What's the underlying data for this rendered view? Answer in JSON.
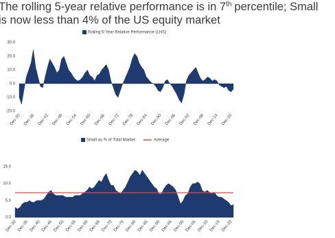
{
  "title": {
    "line1_start": "The rolling 5-year relative performance is in 7",
    "line1_sup": "th",
    "line1_end": "percentile; Small",
    "line2": "is now less than 4% of the US equity market"
  },
  "chart_data": [
    {
      "type": "area",
      "categories": [
        "Dec-30",
        null,
        null,
        null,
        null,
        null,
        "Dec-36",
        null,
        null,
        null,
        null,
        null,
        "Dec-42",
        null,
        null,
        null,
        null,
        null,
        "Dec-48",
        null,
        null,
        null,
        null,
        null,
        "Dec-54",
        null,
        null,
        null,
        null,
        null,
        "Dec-60",
        null,
        null,
        null,
        null,
        null,
        "Dec-66",
        null,
        null,
        null,
        null,
        null,
        "Dec-72",
        null,
        null,
        null,
        null,
        null,
        "Dec-78",
        null,
        null,
        null,
        null,
        null,
        "Dec-84",
        null,
        null,
        null,
        null,
        null,
        "Dec-90",
        null,
        null,
        null,
        null,
        null,
        "Dec-96",
        null,
        null,
        null,
        null,
        null,
        "Dec-02",
        null,
        null,
        null,
        null,
        null,
        "Dec-08",
        null,
        null,
        null,
        null,
        null,
        "Dec-14",
        null,
        null,
        null,
        null,
        null,
        "Dec-20",
        null
      ],
      "series": [
        {
          "name": "Rolling 5-Year Relative Performance (LHS)",
          "color": "#1f3a6e",
          "values": [
            -10,
            -15,
            -5,
            5,
            10,
            15,
            25,
            12,
            5,
            -2,
            -3,
            5,
            12,
            18,
            15,
            12,
            8,
            10,
            18,
            20,
            15,
            10,
            8,
            5,
            3,
            2,
            3,
            5,
            8,
            10,
            6,
            5,
            2,
            6,
            7,
            10,
            12,
            14,
            10,
            2,
            -3,
            -8,
            -10,
            -5,
            0,
            4,
            8,
            12,
            18,
            22,
            20,
            15,
            12,
            10,
            5,
            3,
            1,
            0,
            -2,
            -5,
            -6,
            -3,
            2,
            3,
            0,
            -2,
            -5,
            -8,
            -12,
            -14,
            -8,
            2,
            6,
            8,
            10,
            12,
            8,
            4,
            2,
            3,
            5,
            4,
            2,
            3,
            2,
            -1,
            -2,
            -3,
            -2,
            -5,
            -6,
            -4
          ]
        }
      ],
      "ylim": [
        -20,
        30
      ],
      "yticks": [
        {
          "value": -20,
          "label": "-20.0"
        },
        {
          "value": -10,
          "label": "-10.0"
        },
        {
          "value": 0,
          "label": "0.0"
        },
        {
          "value": 10,
          "label": "10.0"
        },
        {
          "value": 20,
          "label": "20.0"
        },
        {
          "value": 30,
          "label": "30.0"
        }
      ]
    },
    {
      "type": "area",
      "categories": [
        "Dec-30",
        null,
        null,
        null,
        null,
        "Dec-35",
        null,
        null,
        null,
        null,
        "Dec-40",
        null,
        null,
        null,
        null,
        "Dec-45",
        null,
        null,
        null,
        null,
        "Dec-50",
        null,
        null,
        null,
        null,
        "Dec-55",
        null,
        null,
        null,
        null,
        "Dec-60",
        null,
        null,
        null,
        null,
        "Dec-65",
        null,
        null,
        null,
        null,
        "Dec-70",
        null,
        null,
        null,
        null,
        "Dec-75",
        null,
        null,
        null,
        null,
        "Dec-80",
        null,
        null,
        null,
        null,
        "Dec-85",
        null,
        null,
        null,
        null,
        "Dec-90",
        null,
        null,
        null,
        null,
        "Dec-95",
        null,
        null,
        null,
        null,
        "Dec-00",
        null,
        null,
        null,
        null,
        "Dec-05",
        null,
        null,
        null,
        null,
        "Dec-10",
        null,
        null,
        null,
        null,
        "Dec-15",
        null,
        null,
        null,
        null,
        "Dec-20",
        null
      ],
      "series": [
        {
          "name": "Small as % of Total Market",
          "color": "#1f3a6e",
          "values": [
            3,
            2.5,
            3,
            4,
            4.5,
            4.5,
            5,
            4.5,
            4.5,
            5,
            5,
            5,
            5.5,
            6.5,
            7.5,
            8,
            7,
            6.5,
            6.5,
            6.5,
            6.5,
            6,
            6,
            6,
            6,
            6.5,
            6.5,
            6.5,
            7,
            7.5,
            8,
            9,
            8.5,
            9,
            10,
            11,
            10.5,
            12,
            13,
            11,
            9.5,
            9.5,
            8,
            7.5,
            7,
            8,
            9,
            10.5,
            12,
            13,
            14,
            13.5,
            12.5,
            14,
            13,
            12,
            11,
            10,
            9,
            8.5,
            7,
            7,
            8.5,
            9.5,
            10,
            9.5,
            9,
            8,
            6,
            4,
            5,
            6.5,
            7,
            9,
            10,
            10,
            10.5,
            10,
            8,
            7.5,
            8,
            7.5,
            7,
            7.5,
            6.5,
            6,
            6,
            5.5,
            5,
            4.5,
            3.5,
            3.8
          ]
        },
        {
          "name": "Average",
          "color": "#e8473f",
          "type": "line",
          "value": 7.3
        }
      ],
      "ylim": [
        0,
        15
      ],
      "yticks": [
        {
          "value": 0,
          "label": "0.0"
        },
        {
          "value": 5,
          "label": "5.0"
        },
        {
          "value": 10,
          "label": "10.0"
        },
        {
          "value": 15,
          "label": "15.0"
        }
      ]
    }
  ]
}
